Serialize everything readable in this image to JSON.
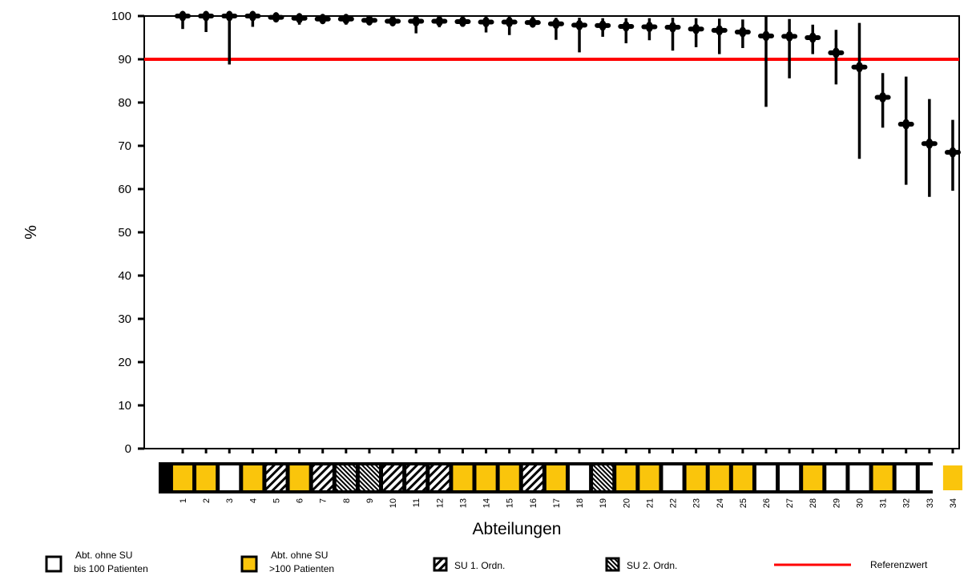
{
  "chart_data": {
    "type": "scatter",
    "ylabel": "%",
    "xlabel": "Abteilungen",
    "ylim": [
      0,
      100
    ],
    "yticks": [
      0,
      10,
      20,
      30,
      40,
      50,
      60,
      70,
      80,
      90,
      100
    ],
    "reference_value": 90,
    "reference_label": "Referenzwert",
    "reference_color": "#ff0000",
    "marker_color": "#000000",
    "grid": false,
    "categories": [
      "1",
      "2",
      "3",
      "4",
      "5",
      "6",
      "7",
      "8",
      "9",
      "10",
      "11",
      "12",
      "13",
      "14",
      "15",
      "16",
      "17",
      "18",
      "19",
      "20",
      "21",
      "22",
      "23",
      "24",
      "25",
      "26",
      "27",
      "28",
      "29",
      "30",
      "31",
      "32",
      "33",
      "34"
    ],
    "values": [
      100,
      100,
      100,
      100,
      99.7,
      99.5,
      99.3,
      99.3,
      99,
      98.8,
      98.8,
      98.8,
      98.7,
      98.6,
      98.6,
      98.5,
      98.2,
      97.9,
      97.8,
      97.6,
      97.5,
      97.4,
      97,
      96.7,
      96.3,
      95.4,
      95.3,
      95,
      91.5,
      88.2,
      81.2,
      75,
      70.5,
      68.5
    ],
    "ci_low": [
      97,
      96.3,
      88.8,
      97.5,
      98.8,
      98,
      98.5,
      98,
      97.9,
      97.8,
      96,
      97.4,
      97.5,
      96.2,
      95.6,
      97.6,
      94.5,
      91.6,
      95.2,
      93.7,
      94.4,
      92,
      92.8,
      91.2,
      92.6,
      79,
      85.6,
      91.2,
      84.2,
      67,
      74.2,
      61,
      58.2,
      59.6
    ],
    "ci_high": [
      100,
      100,
      100,
      100,
      100,
      100,
      100,
      100,
      100,
      100,
      100,
      100,
      100,
      100,
      100,
      100,
      99.6,
      99.6,
      99.5,
      99.5,
      99.5,
      99.6,
      99.5,
      99.4,
      99.2,
      100,
      99.3,
      98,
      96.8,
      98.4,
      86.8,
      86,
      80.8,
      76
    ],
    "dept_types": [
      "Y",
      "Y",
      "W",
      "Y",
      "D1",
      "Y",
      "D1",
      "D2",
      "D2",
      "D1",
      "D1",
      "D1",
      "Y",
      "Y",
      "Y",
      "D1",
      "Y",
      "W",
      "D2",
      "Y",
      "Y",
      "W",
      "Y",
      "Y",
      "Y",
      "W",
      "W",
      "Y",
      "W",
      "W",
      "Y",
      "W",
      "W",
      "Y"
    ],
    "type_colors": {
      "W": "#ffffff",
      "Y": "#fac50c"
    },
    "legend": [
      {
        "type": "W",
        "line1": "Abt. ohne SU",
        "line2": "bis 100 Patienten"
      },
      {
        "type": "Y",
        "line1": "Abt. ohne SU",
        "line2": ">100 Patienten"
      },
      {
        "type": "D1",
        "line1": "SU 1. Ordn.",
        "line2": ""
      },
      {
        "type": "D2",
        "line1": "SU   2. Ordn.",
        "line2": ""
      },
      {
        "type": "REF",
        "line1": "Referenzwert",
        "line2": ""
      }
    ]
  }
}
